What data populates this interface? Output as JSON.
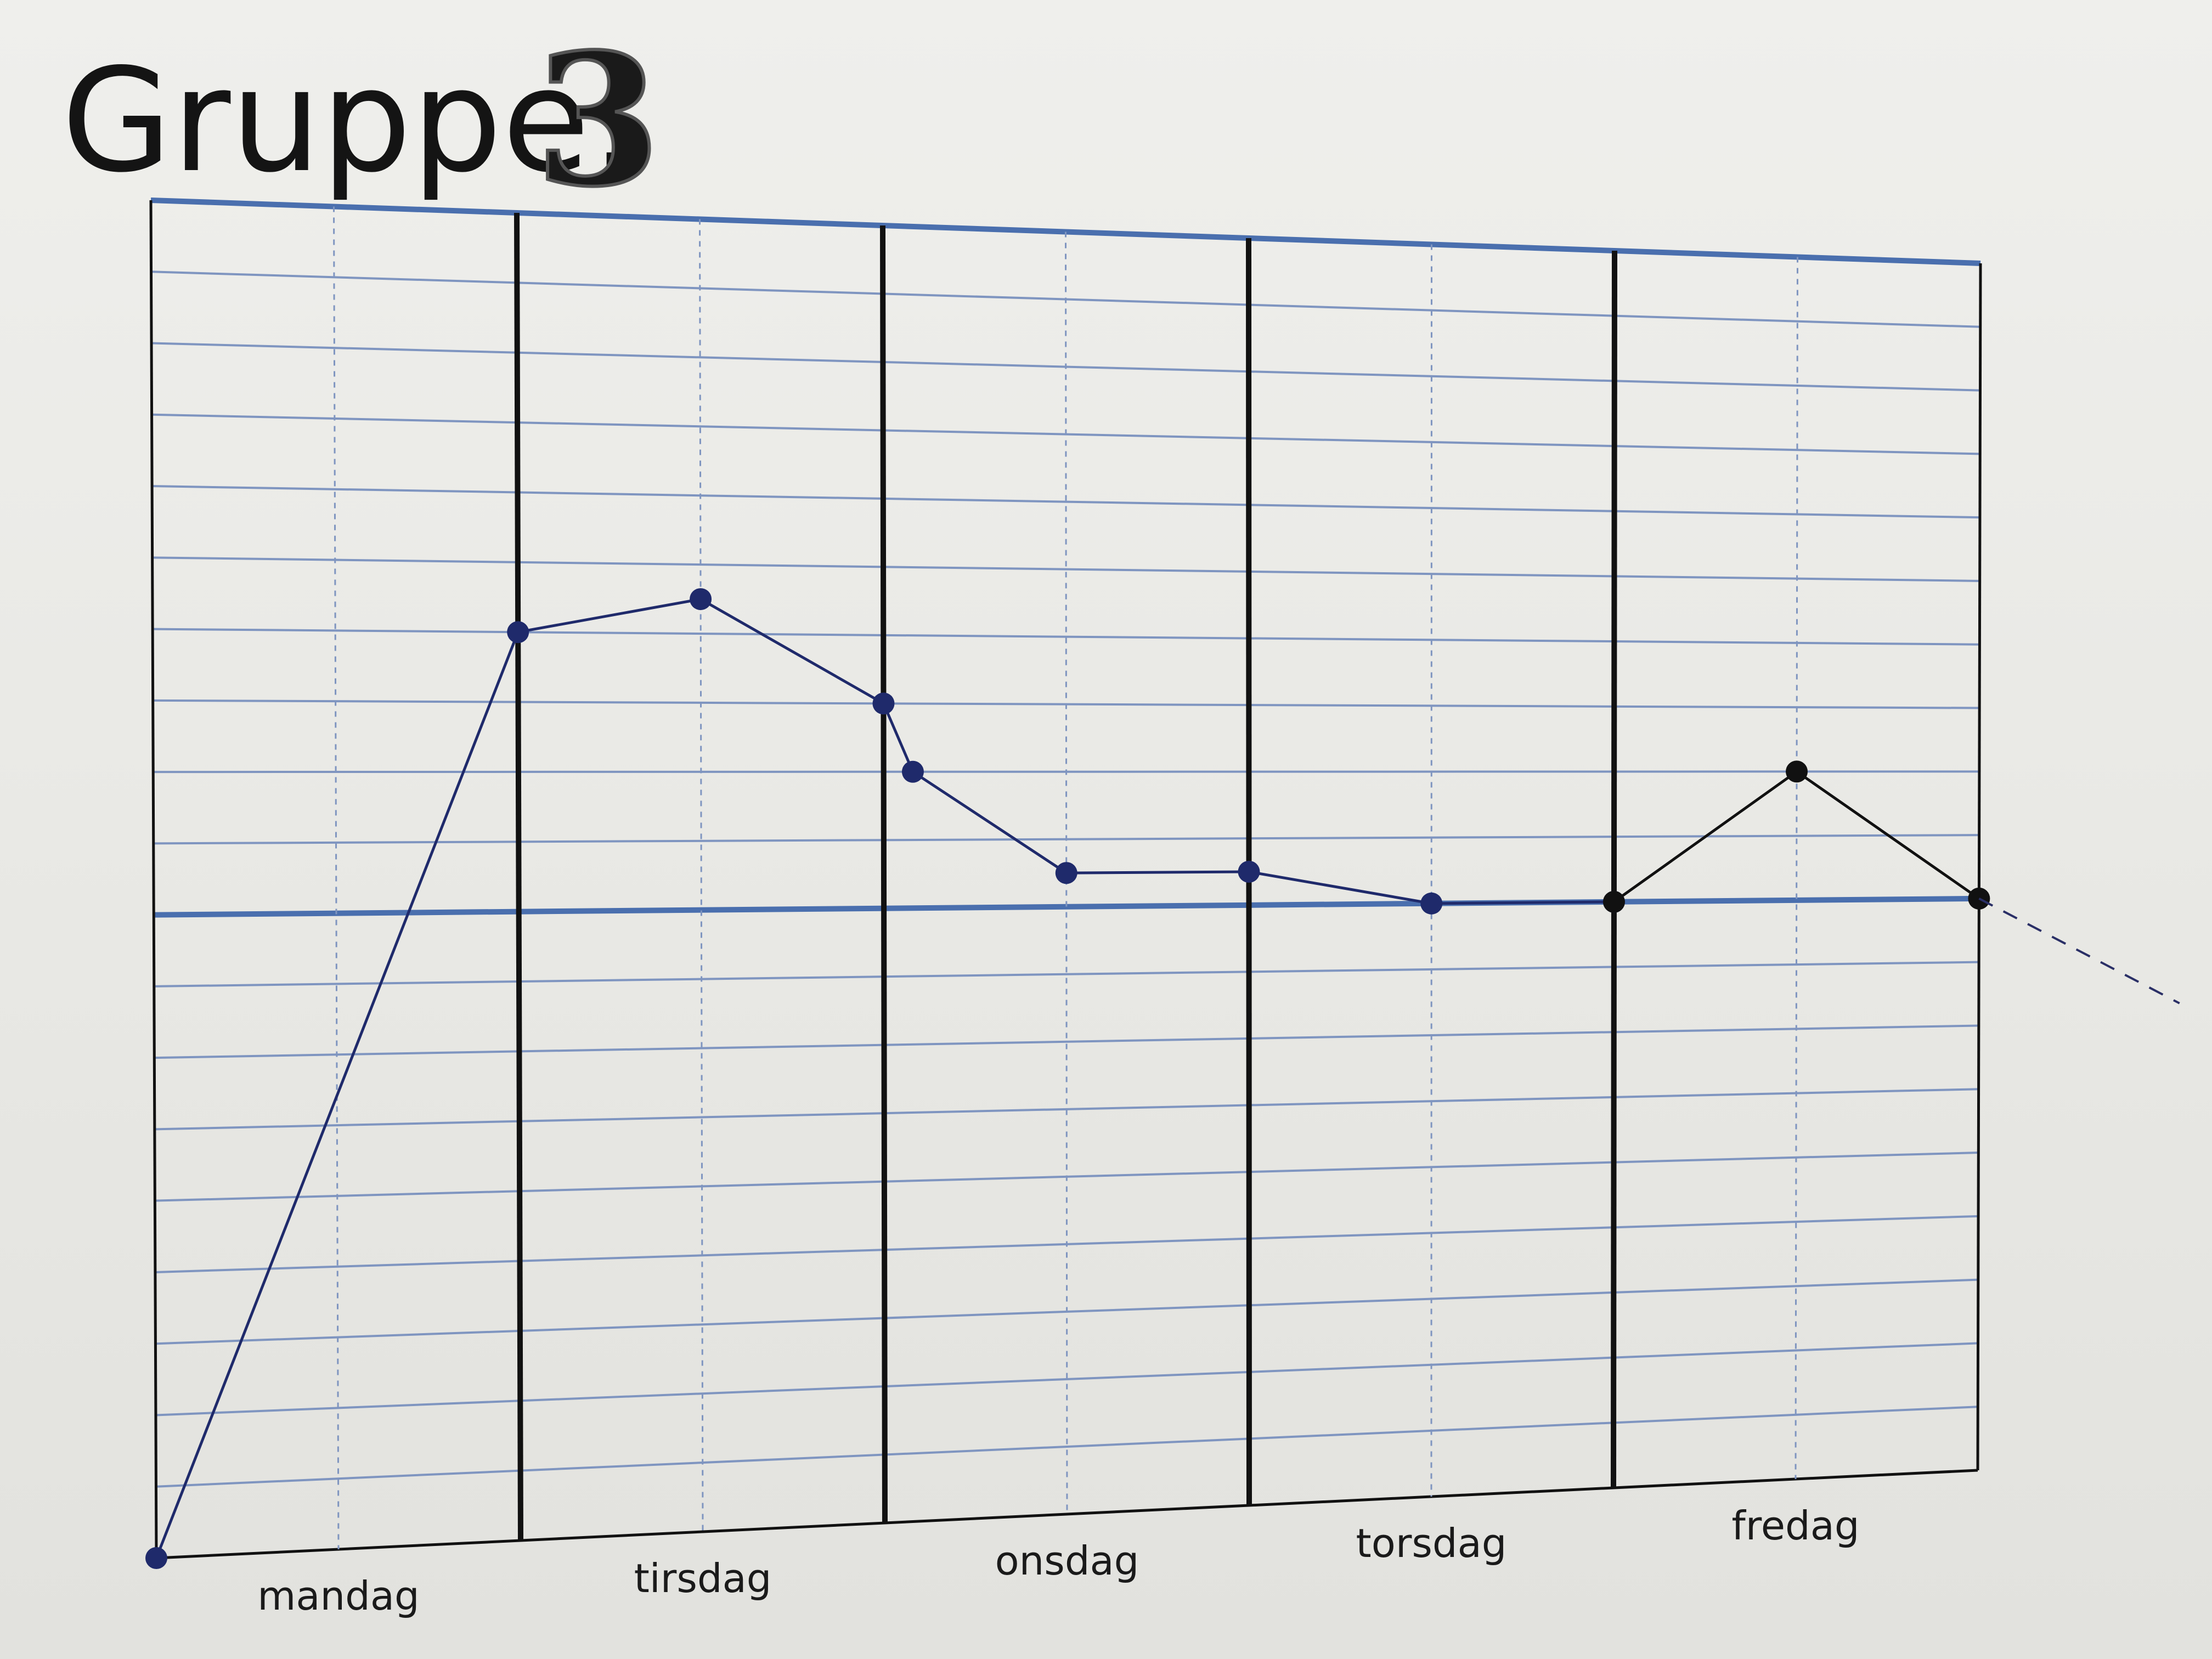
{
  "page": {
    "title_prefix": "Gruppe:",
    "group_number": "3"
  },
  "chart_data": {
    "type": "line",
    "title": "Gruppe: 3",
    "xlabel": "",
    "ylabel": "",
    "categories": [
      "mandag",
      "tirsdag",
      "onsdag",
      "torsdag",
      "fredag"
    ],
    "xlim": [
      0,
      5
    ],
    "ylim": [
      0,
      19
    ],
    "grid": true,
    "reference_line_y": 9,
    "series": [
      {
        "color": "#1f2a6b",
        "points": [
          {
            "x": 0.0,
            "y": 0
          },
          {
            "x": 1.0,
            "y": 13
          },
          {
            "x": 1.5,
            "y": 13.5
          },
          {
            "x": 2.0,
            "y": 12
          },
          {
            "x": 2.08,
            "y": 11
          },
          {
            "x": 2.5,
            "y": 9.5
          },
          {
            "x": 3.0,
            "y": 9.5
          },
          {
            "x": 3.5,
            "y": 9
          },
          {
            "x": 4.0,
            "y": 9
          }
        ]
      },
      {
        "color": "#111111",
        "points": [
          {
            "x": 4.0,
            "y": 9
          },
          {
            "x": 4.5,
            "y": 11
          },
          {
            "x": 5.0,
            "y": 9
          }
        ]
      }
    ],
    "dashed_extension": {
      "from": {
        "x": 5.0,
        "y": 9
      },
      "to": {
        "x": 5.55,
        "y": 7.3
      }
    }
  },
  "colors": {
    "paper": "#efefec",
    "grid_blue": "#4a6fae",
    "grid_light": "#7f95c0",
    "divider": "#111111",
    "plot_blue": "#1f2a6b"
  }
}
